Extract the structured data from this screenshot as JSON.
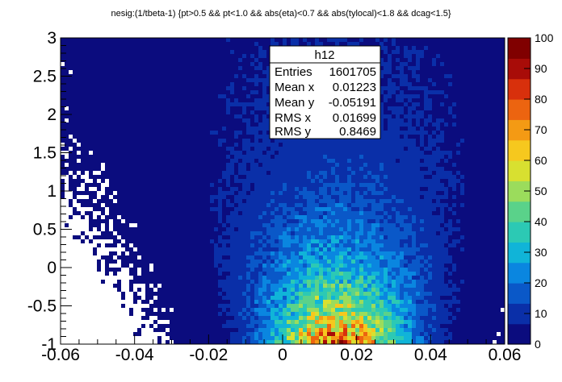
{
  "chart_data": {
    "type": "heatmap",
    "title": "nesig:(1/tbeta-1) {pt>0.5 && pt<1.0 && abs(eta)<0.7 && abs(tylocal)<1.8 && dcag<1.5}",
    "xlim": [
      -0.06,
      0.06
    ],
    "ylim": [
      -1,
      3
    ],
    "zlim": [
      0,
      100
    ],
    "x_ticks": [
      "-0.06",
      "-0.04",
      "-0.02",
      "0",
      "0.02",
      "0.04",
      "0.06"
    ],
    "x_tick_values": [
      -0.06,
      -0.04,
      -0.02,
      0,
      0.02,
      0.04,
      0.06
    ],
    "y_ticks": [
      "-1",
      "-0.5",
      "0",
      "0.5",
      "1",
      "1.5",
      "2",
      "2.5",
      "3"
    ],
    "y_tick_values": [
      -1,
      -0.5,
      0,
      0.5,
      1,
      1.5,
      2,
      2.5,
      3
    ],
    "z_ticks": [
      "0",
      "10",
      "20",
      "30",
      "40",
      "50",
      "60",
      "70",
      "80",
      "90",
      "100"
    ],
    "z_tick_values": [
      0,
      10,
      20,
      30,
      40,
      50,
      60,
      70,
      80,
      90,
      100
    ],
    "palette": [
      "#0b0c7e",
      "#0a2fa8",
      "#0a58c8",
      "#0a86e0",
      "#10b4d8",
      "#2cc9b4",
      "#5ad28a",
      "#9bdc5c",
      "#d8e030",
      "#f6c81e",
      "#f49a14",
      "#ec6410",
      "#d8300c",
      "#a80c08",
      "#800000"
    ],
    "stats": {
      "name": "h12",
      "rows": [
        {
          "label": "Entries",
          "value": "1601705"
        },
        {
          "label": "Mean x",
          "value": "0.01223"
        },
        {
          "label": "Mean y",
          "value": "-0.05191"
        },
        {
          "label": "RMS x",
          "value": "0.01699"
        },
        {
          "label": "RMS y",
          "value": "0.8469"
        }
      ]
    },
    "grid": false,
    "legend": "none",
    "density_model": {
      "peak_x": 0.015,
      "peak_y": -1.0,
      "peak_count": 75,
      "sigma_x_core": 0.012,
      "sigma_y_decay": 0.9,
      "halo_level": 6,
      "halo_sigma_x": 0.022
    }
  }
}
